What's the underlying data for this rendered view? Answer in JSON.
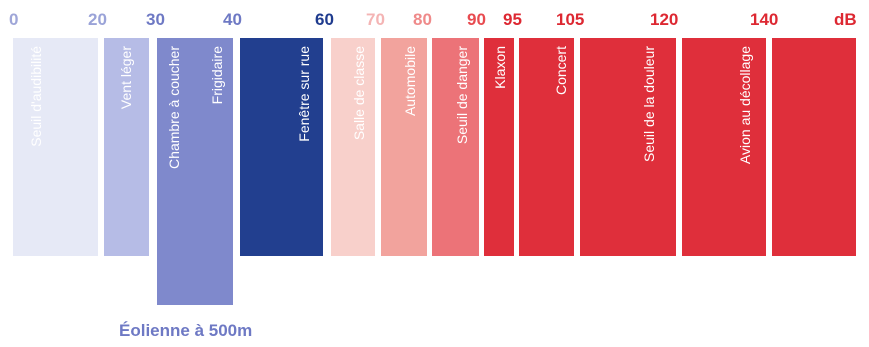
{
  "scale_labels": [
    {
      "text": "0",
      "color": "#9fa6d8"
    },
    {
      "text": "20",
      "color": "#9aa3d8"
    },
    {
      "text": "30",
      "color": "#6e79c4"
    },
    {
      "text": "40",
      "color": "#6e79c4"
    },
    {
      "text": "60",
      "color": "#1f3b8e"
    },
    {
      "text": "70",
      "color": "#f4b4b4"
    },
    {
      "text": "80",
      "color": "#ef8a8a"
    },
    {
      "text": "90",
      "color": "#e84b50"
    },
    {
      "text": "95",
      "color": "#dd2832"
    },
    {
      "text": "105",
      "color": "#dd2832"
    },
    {
      "text": "120",
      "color": "#dd2832"
    },
    {
      "text": "140",
      "color": "#dd2832"
    },
    {
      "text": "dB",
      "color": "#dd2832"
    }
  ],
  "bars": [
    {
      "label": "Seuil d'audibilité",
      "color": "#e6e9f6"
    },
    {
      "label": "Vent léger",
      "color": "#b6bce6"
    },
    {
      "label": "Chambre à coucher",
      "color": "#7f89cc"
    },
    {
      "label": "Frigidaire",
      "color": "#7f89cc"
    },
    {
      "label": "Fenêtre sur rue",
      "color": "#223f8f"
    },
    {
      "label": "Salle de classe",
      "color": "#f8d0cb"
    },
    {
      "label": "Automobile",
      "color": "#f2a39d"
    },
    {
      "label": "Seuil de danger",
      "color": "#ec7378"
    },
    {
      "label": "Klaxon",
      "color": "#df2f3b"
    },
    {
      "label": "Concert",
      "color": "#df2f3b"
    },
    {
      "label": "Seuil de la douleur",
      "color": "#df2f3b"
    },
    {
      "label": "Avion au décollage",
      "color": "#df2f3b"
    },
    {
      "label": "",
      "color": "#df2f3b"
    }
  ],
  "caption": {
    "text": "Éolienne à 500m",
    "color": "#6e79c4"
  }
}
